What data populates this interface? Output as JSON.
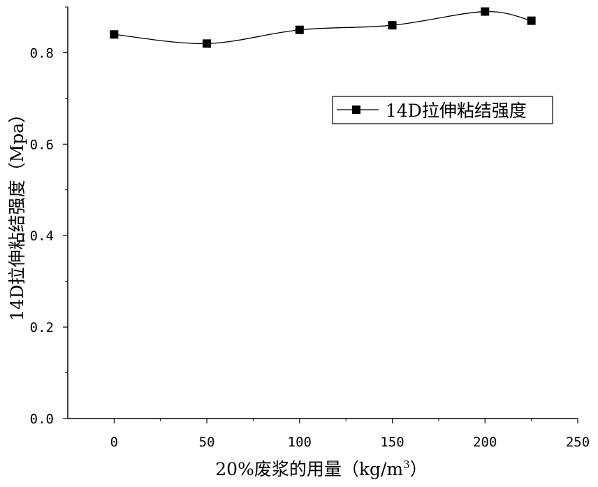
{
  "chart_data": {
    "type": "line",
    "title": "",
    "xlabel": "20%废浆的用量（kg/m",
    "xlabel_sup": "3",
    "xlabel_close": "）",
    "ylabel": "14D拉伸粘结强度（Mpa）",
    "xlim": [
      -25,
      250
    ],
    "ylim": [
      0.0,
      0.9
    ],
    "x_ticks": [
      0,
      50,
      100,
      150,
      200,
      250
    ],
    "x_tick_labels": [
      "0",
      "50",
      "100",
      "150",
      "200",
      "250"
    ],
    "y_ticks": [
      0.0,
      0.2,
      0.4,
      0.6,
      0.8
    ],
    "y_tick_labels": [
      "0.0",
      "0.2",
      "0.4",
      "0.6",
      "0.8"
    ],
    "legend_position": "top-right",
    "smooth_line": true,
    "marker": "square",
    "colors": {
      "line": "#000000",
      "marker": "#000000"
    },
    "series": [
      {
        "name": "14D拉伸粘结强度",
        "x": [
          0,
          50,
          100,
          150,
          200,
          225
        ],
        "values": [
          0.84,
          0.82,
          0.85,
          0.86,
          0.89,
          0.87
        ]
      }
    ]
  }
}
